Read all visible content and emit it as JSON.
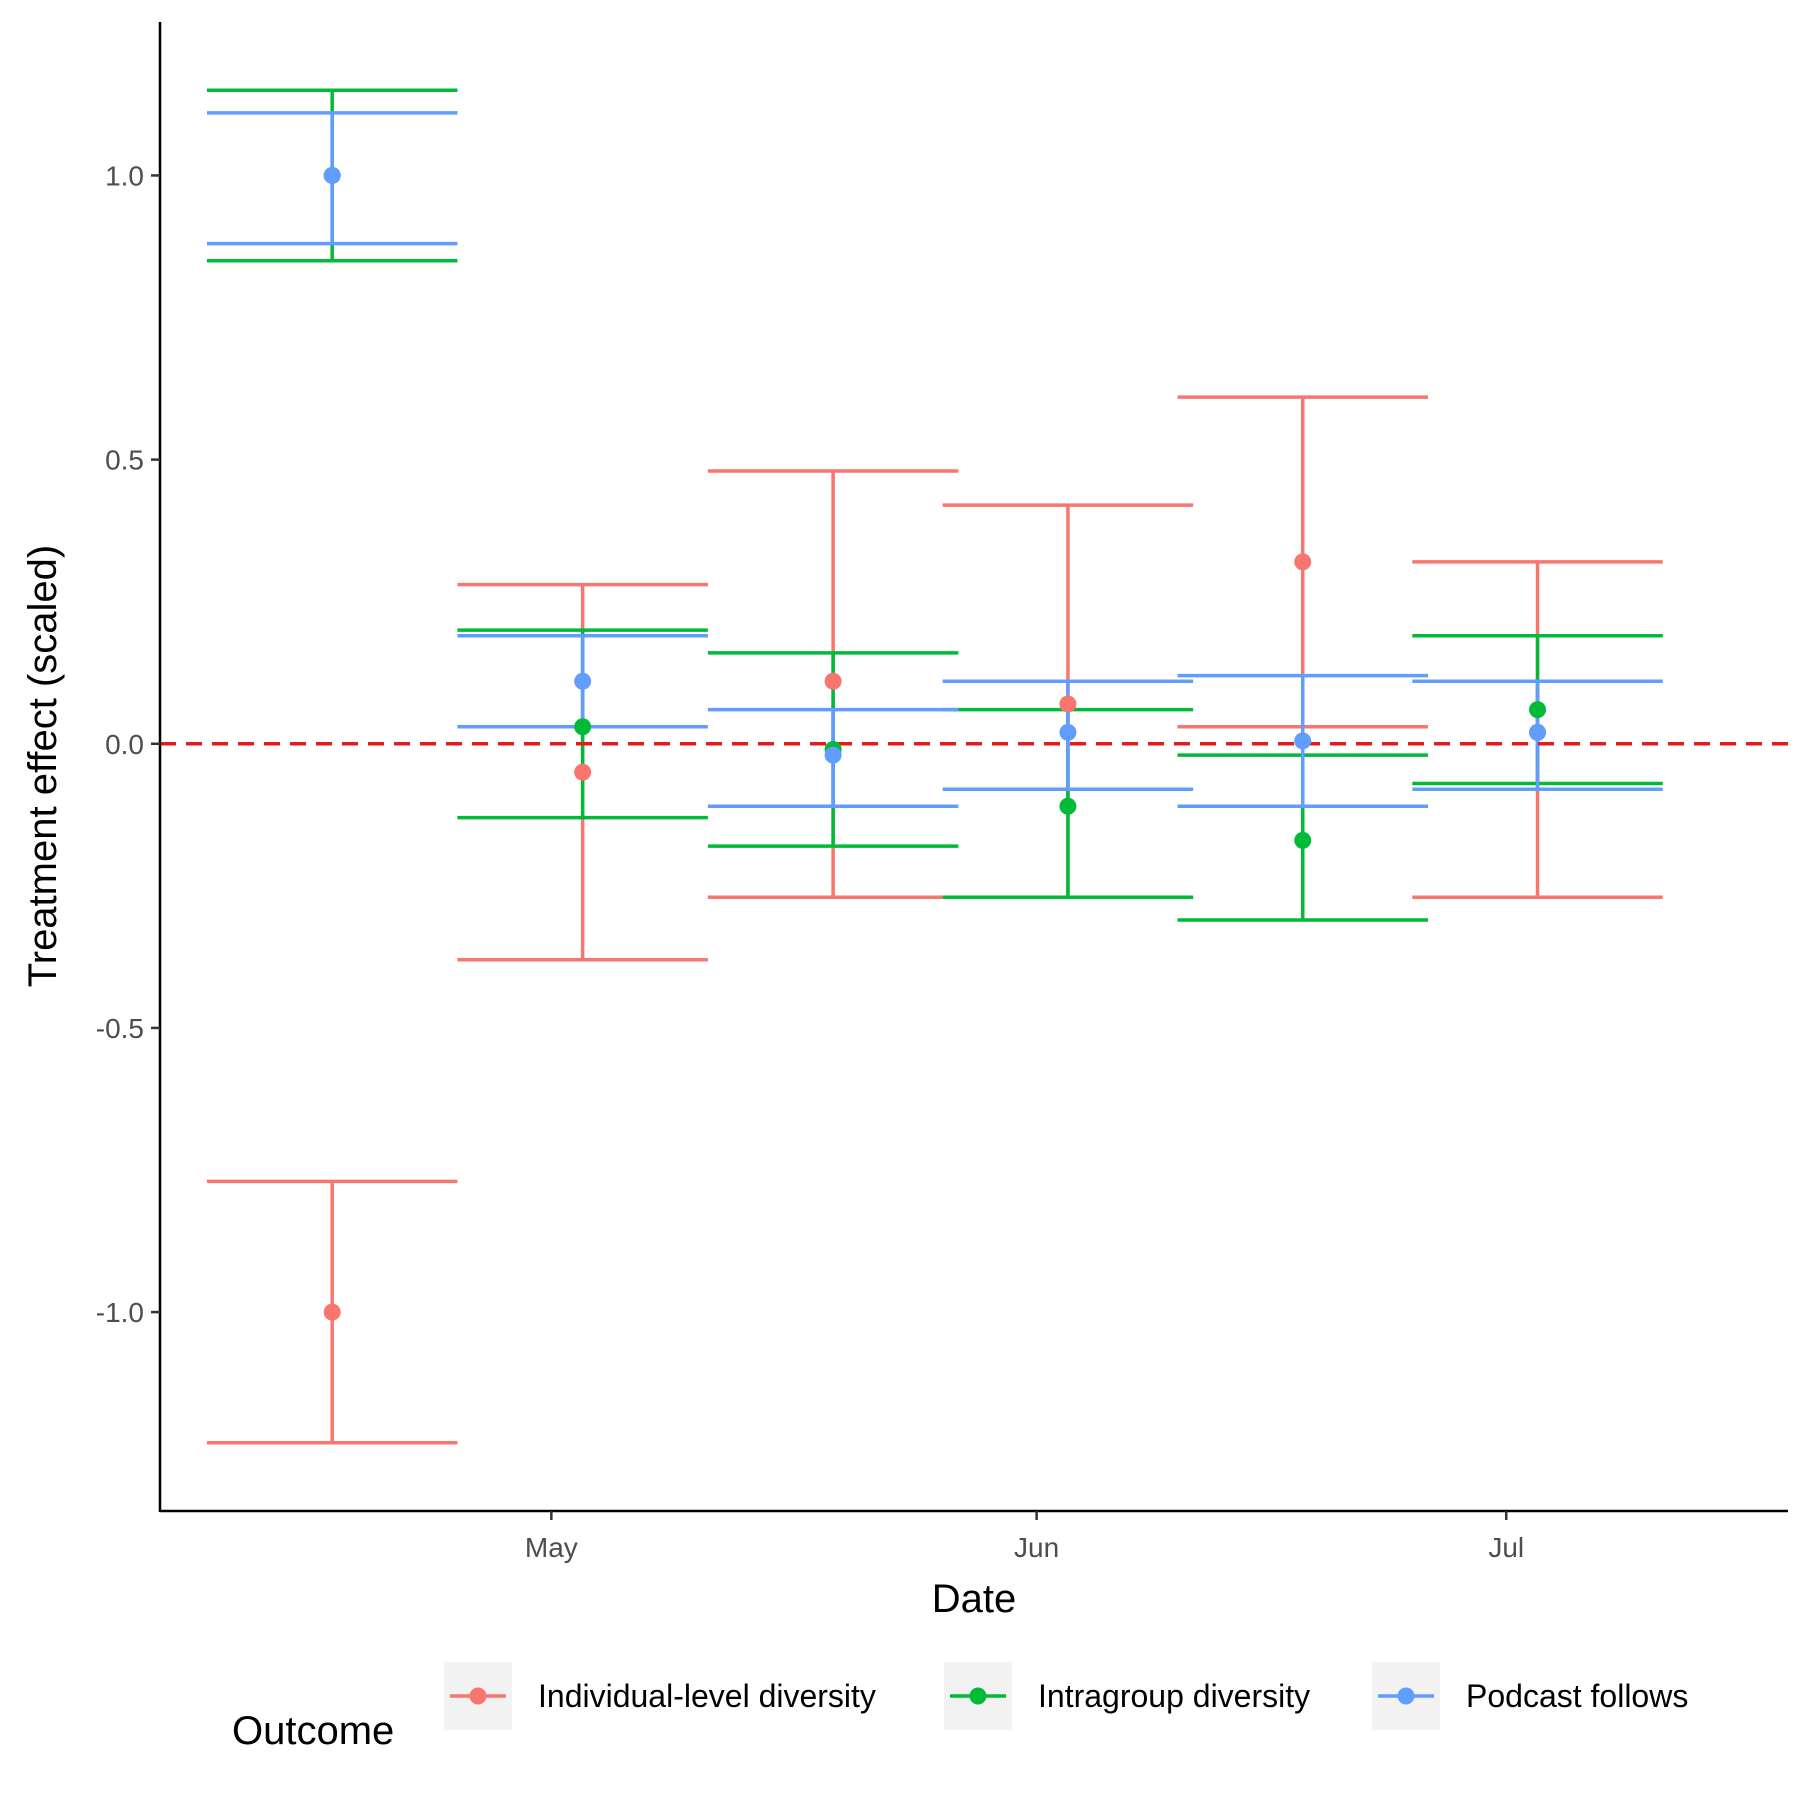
{
  "chart_data": {
    "type": "scatter",
    "subtype": "point-with-error-bars",
    "xlabel": "Date",
    "ylabel": "Treatment effect (scaled)",
    "x_tick_labels": [
      "May",
      "Jun",
      "Jul"
    ],
    "x_tick_dates": [
      "2024-05-01",
      "2024-06-01",
      "2024-07-01"
    ],
    "y_ticks": [
      -1.0,
      -0.5,
      0.0,
      0.5,
      1.0
    ],
    "y_tick_labels": [
      "-1.0",
      "-0.5",
      "0.0",
      "0.5",
      "1.0"
    ],
    "xlim": [
      "2024-04-06",
      "2024-07-19"
    ],
    "ylim": [
      -1.35,
      1.27
    ],
    "grid": false,
    "reference_line": {
      "y": 0,
      "color": "#e41a1c",
      "style": "dashed"
    },
    "legend": {
      "title": "Outcome",
      "position": "bottom"
    },
    "series": [
      {
        "name": "Individual-level diversity",
        "color": "#F8766D",
        "points": [
          {
            "date": "2024-04-17",
            "y": -1.0,
            "lo": -1.23,
            "hi": -0.77
          },
          {
            "date": "2024-05-03",
            "y": -0.05,
            "lo": -0.38,
            "hi": 0.28
          },
          {
            "date": "2024-05-19",
            "y": 0.11,
            "lo": -0.27,
            "hi": 0.48
          },
          {
            "date": "2024-06-03",
            "y": 0.07,
            "lo": -0.27,
            "hi": 0.42
          },
          {
            "date": "2024-06-18",
            "y": 0.32,
            "lo": 0.03,
            "hi": 0.61
          },
          {
            "date": "2024-07-03",
            "y": 0.02,
            "lo": -0.27,
            "hi": 0.32
          }
        ]
      },
      {
        "name": "Intragroup diversity",
        "color": "#00BA38",
        "points": [
          {
            "date": "2024-04-17",
            "y": 1.0,
            "lo": 0.85,
            "hi": 1.15
          },
          {
            "date": "2024-05-03",
            "y": 0.03,
            "lo": -0.13,
            "hi": 0.2
          },
          {
            "date": "2024-05-19",
            "y": -0.01,
            "lo": -0.18,
            "hi": 0.16
          },
          {
            "date": "2024-06-03",
            "y": -0.11,
            "lo": -0.27,
            "hi": 0.06
          },
          {
            "date": "2024-06-18",
            "y": -0.17,
            "lo": -0.31,
            "hi": -0.02
          },
          {
            "date": "2024-07-03",
            "y": 0.06,
            "lo": -0.07,
            "hi": 0.19
          }
        ]
      },
      {
        "name": "Podcast follows",
        "color": "#619CFF",
        "points": [
          {
            "date": "2024-04-17",
            "y": 1.0,
            "lo": 0.88,
            "hi": 1.11
          },
          {
            "date": "2024-05-03",
            "y": 0.11,
            "lo": 0.03,
            "hi": 0.19
          },
          {
            "date": "2024-05-19",
            "y": -0.02,
            "lo": -0.11,
            "hi": 0.06
          },
          {
            "date": "2024-06-03",
            "y": 0.02,
            "lo": -0.08,
            "hi": 0.11
          },
          {
            "date": "2024-06-18",
            "y": 0.005,
            "lo": -0.11,
            "hi": 0.12
          },
          {
            "date": "2024-07-03",
            "y": 0.02,
            "lo": -0.08,
            "hi": 0.11
          }
        ]
      }
    ]
  }
}
